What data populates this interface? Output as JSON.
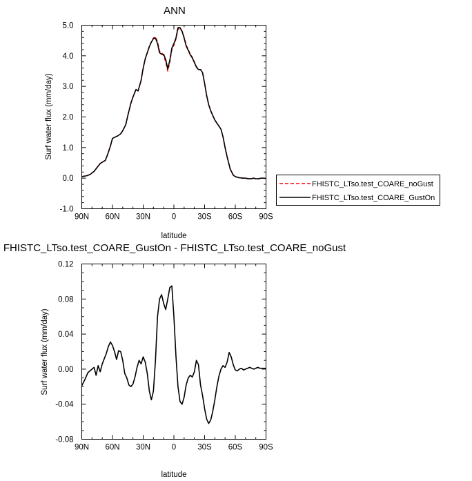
{
  "chart_data": [
    {
      "type": "line",
      "title": "ANN",
      "xlabel": "latitude",
      "ylabel": "Surf water flux (mm/day)",
      "x_ticks": [
        {
          "value": 90,
          "label": "90N"
        },
        {
          "value": 60,
          "label": "60N"
        },
        {
          "value": 30,
          "label": "30N"
        },
        {
          "value": 0,
          "label": "0"
        },
        {
          "value": -30,
          "label": "30S"
        },
        {
          "value": -60,
          "label": "60S"
        },
        {
          "value": -90,
          "label": "90S"
        }
      ],
      "y_ticks": [
        {
          "value": 5,
          "label": "5.0"
        },
        {
          "value": 4,
          "label": "4.0"
        },
        {
          "value": 3,
          "label": "3.0"
        },
        {
          "value": 2,
          "label": "2.0"
        },
        {
          "value": 1,
          "label": "1.0"
        },
        {
          "value": 0,
          "label": "0.0"
        },
        {
          "value": -1,
          "label": "-1.0"
        }
      ],
      "xlim": [
        90,
        -90
      ],
      "ylim": [
        -1.0,
        5.0
      ],
      "x_minor_step": 10,
      "y_minor_step": 0.2,
      "legend_position": "outside-right",
      "grid": false,
      "series": [
        {
          "name": "FHISTC_LTso.test_COARE_noGust",
          "color": "#ff0000",
          "dash": "dashed",
          "x": [
            90,
            85,
            82,
            78,
            75,
            72,
            70,
            67,
            65,
            62,
            60,
            57,
            55,
            52,
            50,
            47,
            45,
            42,
            40,
            37,
            35,
            32,
            30,
            28,
            26,
            24,
            22,
            20,
            18,
            16,
            14,
            12,
            10,
            8,
            6,
            4,
            2,
            0,
            -2,
            -4,
            -6,
            -8,
            -10,
            -12,
            -14,
            -16,
            -18,
            -20,
            -22,
            -24,
            -26,
            -28,
            -30,
            -32,
            -34,
            -36,
            -38,
            -40,
            -42,
            -44,
            -46,
            -48,
            -50,
            -52,
            -55,
            -58,
            -60,
            -63,
            -65,
            -68,
            -70,
            -73,
            -75,
            -78,
            -80,
            -83,
            -85,
            -88,
            -90
          ],
          "y": [
            0.05,
            0.08,
            0.12,
            0.22,
            0.35,
            0.48,
            0.52,
            0.58,
            0.75,
            1.05,
            1.3,
            1.35,
            1.38,
            1.45,
            1.55,
            1.75,
            2.05,
            2.45,
            2.65,
            2.9,
            2.85,
            3.2,
            3.6,
            3.9,
            4.1,
            4.3,
            4.45,
            4.58,
            4.62,
            4.45,
            4.15,
            4.1,
            4.0,
            3.8,
            3.5,
            3.8,
            4.2,
            4.35,
            4.55,
            4.88,
            4.88,
            4.8,
            4.6,
            4.35,
            4.2,
            4.05,
            3.95,
            3.8,
            3.65,
            3.55,
            3.55,
            3.45,
            3.1,
            2.7,
            2.4,
            2.2,
            2.05,
            1.9,
            1.8,
            1.7,
            1.6,
            1.35,
            1.0,
            0.7,
            0.3,
            0.1,
            0.05,
            0.02,
            0.01,
            0.0,
            0.0,
            -0.02,
            -0.02,
            0.0,
            -0.02,
            -0.02,
            0.0,
            0.0,
            -0.01
          ]
        },
        {
          "name": "FHISTC_LTso.test_COARE_GustOn",
          "color": "#000000",
          "dash": "solid",
          "x": [
            90,
            85,
            82,
            78,
            75,
            72,
            70,
            67,
            65,
            62,
            60,
            57,
            55,
            52,
            50,
            47,
            45,
            42,
            40,
            37,
            35,
            32,
            30,
            28,
            26,
            24,
            22,
            20,
            18,
            16,
            14,
            12,
            10,
            8,
            6,
            4,
            2,
            0,
            -2,
            -4,
            -6,
            -8,
            -10,
            -12,
            -14,
            -16,
            -18,
            -20,
            -22,
            -24,
            -26,
            -28,
            -30,
            -32,
            -34,
            -36,
            -38,
            -40,
            -42,
            -44,
            -46,
            -48,
            -50,
            -52,
            -55,
            -58,
            -60,
            -63,
            -65,
            -68,
            -70,
            -73,
            -75,
            -78,
            -80,
            -83,
            -85,
            -88,
            -90
          ],
          "y": [
            0.05,
            0.08,
            0.12,
            0.22,
            0.35,
            0.48,
            0.52,
            0.58,
            0.75,
            1.05,
            1.3,
            1.35,
            1.38,
            1.45,
            1.55,
            1.75,
            2.05,
            2.45,
            2.65,
            2.9,
            2.85,
            3.2,
            3.6,
            3.9,
            4.1,
            4.3,
            4.45,
            4.56,
            4.58,
            4.4,
            4.1,
            4.05,
            4.05,
            3.88,
            3.57,
            3.85,
            4.25,
            4.4,
            4.58,
            4.92,
            4.92,
            4.8,
            4.58,
            4.32,
            4.18,
            4.03,
            3.93,
            3.78,
            3.63,
            3.55,
            3.55,
            3.45,
            3.1,
            2.7,
            2.4,
            2.2,
            2.05,
            1.9,
            1.8,
            1.7,
            1.6,
            1.35,
            1.0,
            0.7,
            0.3,
            0.1,
            0.05,
            0.02,
            0.01,
            0.0,
            0.0,
            -0.02,
            -0.02,
            0.0,
            -0.02,
            -0.02,
            0.0,
            0.0,
            -0.01
          ]
        }
      ]
    },
    {
      "type": "line",
      "title": "FHISTC_LTso.test_COARE_GustOn - FHISTC_LTso.test_COARE_noGust",
      "xlabel": "latitude",
      "ylabel": "Surf water flux (mm/day)",
      "x_ticks": [
        {
          "value": 90,
          "label": "90N"
        },
        {
          "value": 60,
          "label": "60N"
        },
        {
          "value": 30,
          "label": "30N"
        },
        {
          "value": 0,
          "label": "0"
        },
        {
          "value": -30,
          "label": "30S"
        },
        {
          "value": -60,
          "label": "60S"
        },
        {
          "value": -90,
          "label": "90S"
        }
      ],
      "y_ticks": [
        {
          "value": 0.12,
          "label": "0.12"
        },
        {
          "value": 0.08,
          "label": "0.08"
        },
        {
          "value": 0.04,
          "label": "0.04"
        },
        {
          "value": 0.0,
          "label": "0.00"
        },
        {
          "value": -0.04,
          "label": "-0.04"
        },
        {
          "value": -0.08,
          "label": "-0.08"
        }
      ],
      "xlim": [
        90,
        -90
      ],
      "ylim": [
        -0.08,
        0.12
      ],
      "x_minor_step": 10,
      "y_minor_step": 0.01,
      "grid": false,
      "series": [
        {
          "color": "#000000",
          "dash": "solid",
          "x": [
            90,
            87,
            84,
            81,
            78,
            76,
            74,
            72,
            70,
            68,
            66,
            64,
            62,
            60,
            58,
            56,
            54,
            52,
            50,
            48,
            46,
            44,
            42,
            40,
            38,
            36,
            34,
            32,
            30,
            28,
            26,
            24,
            22,
            20,
            18,
            16,
            14,
            12,
            10,
            8,
            6,
            4,
            2,
            0,
            -2,
            -4,
            -6,
            -8,
            -10,
            -12,
            -14,
            -16,
            -18,
            -20,
            -22,
            -24,
            -26,
            -28,
            -30,
            -32,
            -34,
            -36,
            -38,
            -40,
            -42,
            -44,
            -46,
            -48,
            -50,
            -52,
            -54,
            -56,
            -58,
            -60,
            -62,
            -64,
            -66,
            -68,
            -70,
            -72,
            -74,
            -76,
            -78,
            -80,
            -82,
            -84,
            -86,
            -88,
            -90
          ],
          "y": [
            -0.019,
            -0.012,
            -0.004,
            -0.001,
            0.002,
            -0.007,
            0.004,
            -0.003,
            0.006,
            0.012,
            0.018,
            0.026,
            0.031,
            0.027,
            0.02,
            0.011,
            0.021,
            0.02,
            0.01,
            -0.005,
            -0.01,
            -0.018,
            -0.02,
            -0.017,
            -0.009,
            0.002,
            0.01,
            0.006,
            0.014,
            0.008,
            -0.005,
            -0.025,
            -0.035,
            -0.025,
            0.01,
            0.06,
            0.08,
            0.085,
            0.075,
            0.068,
            0.08,
            0.093,
            0.095,
            0.06,
            0.015,
            -0.02,
            -0.037,
            -0.04,
            -0.032,
            -0.018,
            -0.01,
            -0.007,
            -0.009,
            -0.003,
            0.01,
            0.005,
            -0.018,
            -0.03,
            -0.045,
            -0.057,
            -0.062,
            -0.058,
            -0.048,
            -0.035,
            -0.02,
            -0.008,
            0.0,
            0.004,
            0.002,
            0.008,
            0.019,
            0.014,
            0.005,
            -0.001,
            -0.002,
            0.0,
            0.001,
            -0.001,
            0.0,
            0.001,
            0.002,
            0.001,
            0.0,
            0.001,
            0.002,
            0.001,
            0.001,
            0.001,
            0.001
          ]
        }
      ]
    }
  ]
}
